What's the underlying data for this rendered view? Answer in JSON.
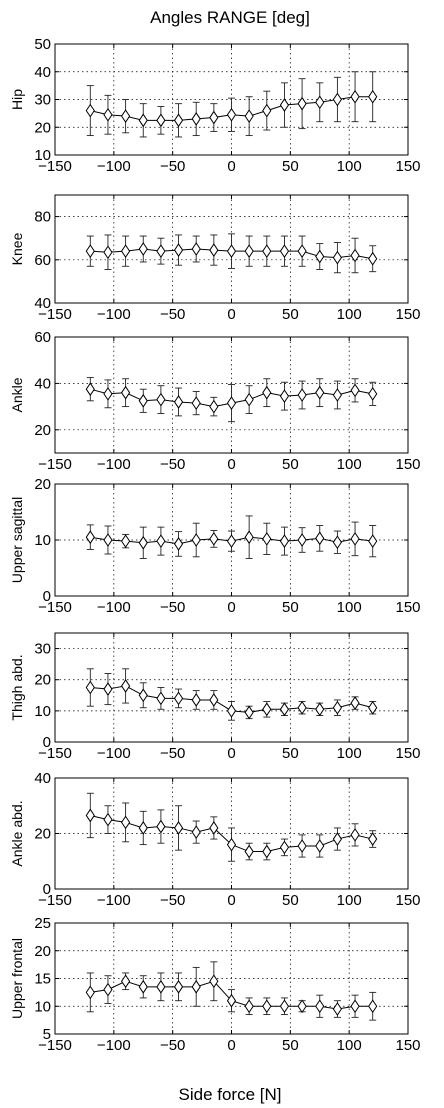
{
  "figure": {
    "title": "Angles RANGE [deg]",
    "xlabel": "Side force [N]"
  },
  "chart_data": [
    {
      "type": "line",
      "title": "Angles RANGE [deg]",
      "ylabel": "Hip",
      "xlim": [
        -150,
        150
      ],
      "ylim": [
        10,
        50
      ],
      "xticks": [
        -150,
        -100,
        -50,
        0,
        50,
        100,
        150
      ],
      "yticks": [
        10,
        20,
        30,
        40,
        50
      ],
      "grid": true,
      "marker": "diamond",
      "x": [
        -120,
        -105,
        -90,
        -75,
        -60,
        -45,
        -30,
        -15,
        0,
        15,
        30,
        45,
        60,
        75,
        90,
        105,
        120
      ],
      "y": [
        26,
        24.5,
        24,
        22.5,
        22.5,
        22.5,
        23,
        23.5,
        24.5,
        24,
        26,
        28,
        28.5,
        29,
        30,
        31,
        31
      ],
      "err": [
        9,
        7,
        6,
        6,
        5,
        6,
        6,
        5,
        6,
        7,
        7,
        8,
        9,
        7,
        8,
        9,
        9
      ]
    },
    {
      "type": "line",
      "ylabel": "Knee",
      "xlim": [
        -150,
        150
      ],
      "ylim": [
        40,
        90
      ],
      "xticks": [
        -150,
        -100,
        -50,
        0,
        50,
        100,
        150
      ],
      "yticks": [
        40,
        60,
        80
      ],
      "grid": true,
      "marker": "diamond",
      "x": [
        -120,
        -105,
        -90,
        -75,
        -60,
        -45,
        -30,
        -15,
        0,
        15,
        30,
        45,
        60,
        75,
        90,
        105,
        120
      ],
      "y": [
        64,
        63.5,
        64,
        65,
        64,
        64.5,
        65,
        64.5,
        64,
        64,
        64,
        64,
        64,
        61.5,
        61,
        62,
        60.5
      ],
      "err": [
        7,
        8,
        7,
        6,
        6,
        7,
        6,
        7,
        8,
        7,
        7,
        7,
        7,
        6,
        7,
        8,
        6
      ]
    },
    {
      "type": "line",
      "ylabel": "Ankle",
      "xlim": [
        -150,
        150
      ],
      "ylim": [
        10,
        60
      ],
      "xticks": [
        -150,
        -100,
        -50,
        0,
        50,
        100,
        150
      ],
      "yticks": [
        20,
        40,
        60
      ],
      "grid": true,
      "marker": "diamond",
      "x": [
        -120,
        -105,
        -90,
        -75,
        -60,
        -45,
        -30,
        -15,
        0,
        15,
        30,
        45,
        60,
        75,
        90,
        105,
        120
      ],
      "y": [
        37.5,
        35.5,
        36,
        32.5,
        33,
        32,
        31.5,
        30,
        31.5,
        33,
        36,
        34.5,
        35,
        36,
        35,
        37,
        35.5
      ],
      "err": [
        5,
        6,
        6,
        5,
        6,
        6,
        5,
        4,
        8,
        6,
        6,
        6,
        6,
        6,
        6,
        5,
        5
      ]
    },
    {
      "type": "line",
      "ylabel": "Upper sagittal",
      "xlim": [
        -150,
        150
      ],
      "ylim": [
        0,
        20
      ],
      "xticks": [
        -150,
        -100,
        -50,
        0,
        50,
        100,
        150
      ],
      "yticks": [
        0,
        10,
        20
      ],
      "grid": true,
      "marker": "diamond",
      "x": [
        -120,
        -105,
        -90,
        -75,
        -60,
        -45,
        -30,
        -15,
        0,
        15,
        30,
        45,
        60,
        75,
        90,
        105,
        120
      ],
      "y": [
        10.5,
        10,
        9.8,
        9.5,
        9.8,
        9.3,
        10,
        10.2,
        9.8,
        10.5,
        10.2,
        9.8,
        10,
        10.3,
        9.6,
        10.2,
        9.8
      ],
      "err": [
        2.2,
        2.5,
        1.2,
        2.8,
        2.5,
        2.2,
        3,
        1.5,
        1.8,
        3.8,
        2.8,
        2.5,
        2.2,
        2.3,
        2,
        3,
        2.8
      ]
    },
    {
      "type": "line",
      "ylabel": "Thigh abd.",
      "xlim": [
        -150,
        150
      ],
      "ylim": [
        0,
        35
      ],
      "xticks": [
        -150,
        -100,
        -50,
        0,
        50,
        100,
        150
      ],
      "yticks": [
        0,
        10,
        20,
        30
      ],
      "grid": true,
      "marker": "diamond",
      "x": [
        -120,
        -105,
        -90,
        -75,
        -60,
        -45,
        -30,
        -15,
        0,
        15,
        30,
        45,
        60,
        75,
        90,
        105,
        120
      ],
      "y": [
        17.5,
        17,
        18,
        15,
        14,
        14,
        13.5,
        13.5,
        10,
        9.5,
        10.5,
        10.5,
        11,
        10.5,
        11,
        12.5,
        11
      ],
      "err": [
        6,
        5,
        5.5,
        4,
        3.5,
        3,
        3,
        3,
        3,
        2,
        2.5,
        2,
        2,
        2,
        2.5,
        2,
        2
      ]
    },
    {
      "type": "line",
      "ylabel": "Ankle abd.",
      "xlim": [
        -150,
        150
      ],
      "ylim": [
        0,
        40
      ],
      "xticks": [
        -150,
        -100,
        -50,
        0,
        50,
        100,
        150
      ],
      "yticks": [
        0,
        20,
        40
      ],
      "grid": true,
      "marker": "diamond",
      "x": [
        -120,
        -105,
        -90,
        -75,
        -60,
        -45,
        -30,
        -15,
        0,
        15,
        30,
        45,
        60,
        75,
        90,
        105,
        120
      ],
      "y": [
        26.5,
        25,
        24,
        22,
        22.5,
        22,
        20.5,
        22,
        16,
        13.5,
        13.5,
        15,
        15.5,
        15.5,
        18,
        19.5,
        18
      ],
      "err": [
        8,
        5,
        7,
        6,
        6,
        8,
        4,
        4,
        6,
        3,
        3,
        3,
        4,
        4,
        4,
        4,
        3
      ]
    },
    {
      "type": "line",
      "ylabel": "Upper frontal",
      "xlim": [
        -150,
        150
      ],
      "ylim": [
        5,
        25
      ],
      "xticks": [
        -150,
        -100,
        -50,
        0,
        50,
        100,
        150
      ],
      "yticks": [
        5,
        10,
        15,
        20,
        25
      ],
      "grid": true,
      "marker": "diamond",
      "x": [
        -120,
        -105,
        -90,
        -75,
        -60,
        -45,
        -30,
        -15,
        0,
        15,
        30,
        45,
        60,
        75,
        90,
        105,
        120
      ],
      "y": [
        12.5,
        13,
        14.5,
        13.5,
        13.5,
        13.5,
        13.5,
        14.5,
        11,
        10,
        10,
        10,
        10,
        10,
        9.5,
        10,
        10
      ],
      "err": [
        3.5,
        2.5,
        1.5,
        2,
        2.5,
        2.5,
        3.5,
        3.5,
        2,
        1.5,
        1.5,
        1.5,
        1,
        2,
        1.5,
        2,
        2.5
      ]
    }
  ]
}
